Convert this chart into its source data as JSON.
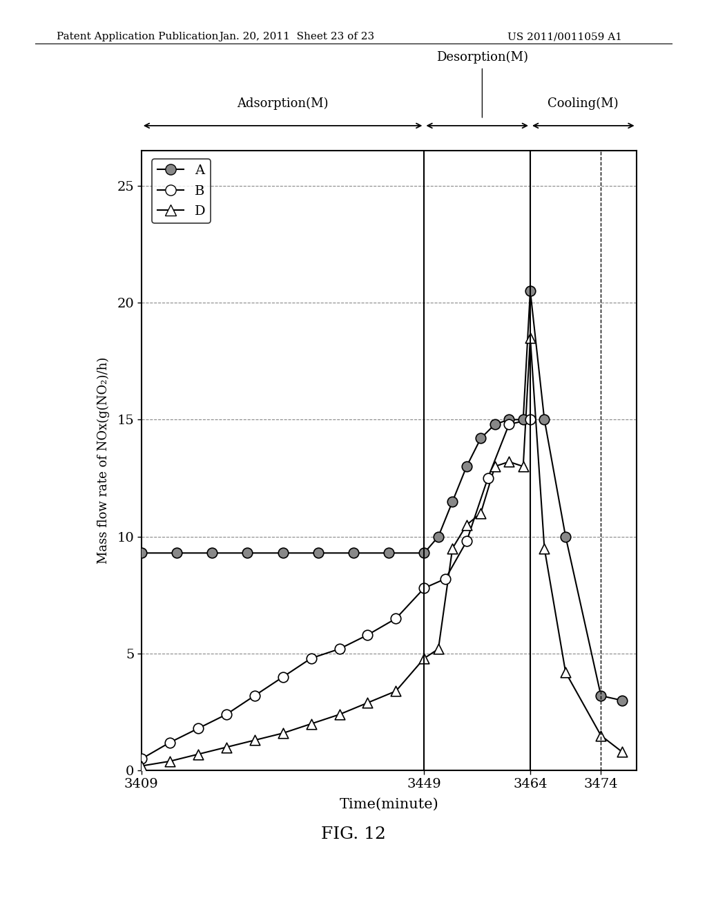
{
  "xlabel": "Time(minute)",
  "ylabel": "Mass flow rate of NOx(g(NO₂)/h)",
  "xlim": [
    3409,
    3479
  ],
  "ylim": [
    0,
    26.5
  ],
  "yticks": [
    0,
    5,
    10,
    15,
    20,
    25
  ],
  "xtick_labels": [
    "3409",
    "3449",
    "3464",
    "3474"
  ],
  "xtick_positions": [
    3409,
    3449,
    3464,
    3474
  ],
  "vline1": 3449,
  "vline2": 3464,
  "vline3": 3474,
  "adsorption_label": "Adsorption(M)",
  "desorption_label": "Desorption(M)",
  "cooling_label": "Cooling(M)",
  "header_left": "Patent Application Publication",
  "header_mid": "Jan. 20, 2011  Sheet 23 of 23",
  "header_right": "US 2011/0011059 A1",
  "fig_caption": "FIG. 12",
  "series_A": {
    "x": [
      3409,
      3414,
      3419,
      3424,
      3429,
      3434,
      3439,
      3444,
      3449,
      3451,
      3453,
      3455,
      3457,
      3459,
      3461,
      3463,
      3464,
      3466,
      3469,
      3474,
      3477
    ],
    "y": [
      9.3,
      9.3,
      9.3,
      9.3,
      9.3,
      9.3,
      9.3,
      9.3,
      9.3,
      10.0,
      11.5,
      13.0,
      14.2,
      14.8,
      15.0,
      15.0,
      20.5,
      15.0,
      10.0,
      3.2,
      3.0
    ],
    "label": "A"
  },
  "series_B": {
    "x": [
      3409,
      3413,
      3417,
      3421,
      3425,
      3429,
      3433,
      3437,
      3441,
      3445,
      3449,
      3452,
      3455,
      3458,
      3461,
      3464
    ],
    "y": [
      0.5,
      1.2,
      1.8,
      2.4,
      3.2,
      4.0,
      4.8,
      5.2,
      5.8,
      6.5,
      7.8,
      8.2,
      9.8,
      12.5,
      14.8,
      15.0
    ],
    "label": "B"
  },
  "series_D": {
    "x": [
      3409,
      3413,
      3417,
      3421,
      3425,
      3429,
      3433,
      3437,
      3441,
      3445,
      3449,
      3451,
      3453,
      3455,
      3457,
      3459,
      3461,
      3463,
      3464,
      3466,
      3469,
      3474,
      3477
    ],
    "y": [
      0.2,
      0.4,
      0.7,
      1.0,
      1.3,
      1.6,
      2.0,
      2.4,
      2.9,
      3.4,
      4.8,
      5.2,
      9.5,
      10.5,
      11.0,
      13.0,
      13.2,
      13.0,
      18.5,
      9.5,
      4.2,
      1.5,
      0.8
    ],
    "label": "D"
  },
  "background_color": "#ffffff"
}
